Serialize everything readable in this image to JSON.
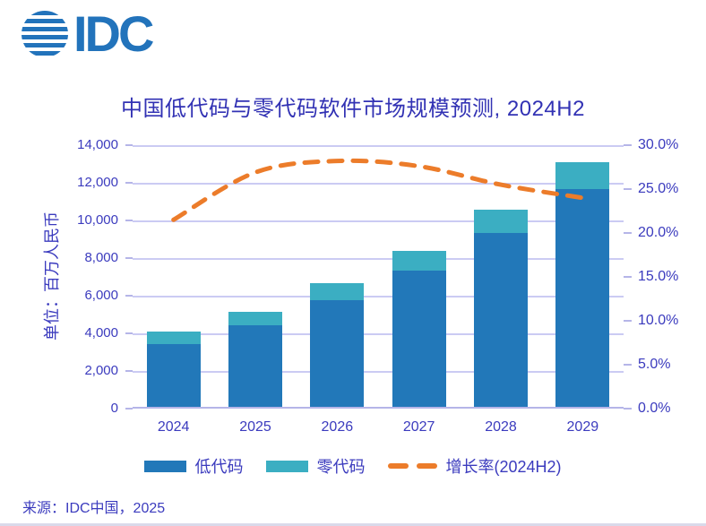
{
  "logo": {
    "text": "IDC",
    "color": "#2273BB"
  },
  "title": "中国低代码与零代码软件市场规模预测, 2024H2",
  "y_axis_title": "单位：百万人民币",
  "source": "来源：IDC中国，2025",
  "colors": {
    "low_code": "#2278B9",
    "zero_code": "#3BAEC2",
    "growth_line": "#EC7C2A",
    "text_blue": "#3B3BBE",
    "title_blue": "#3232B4",
    "gridline": "#CBCBF3",
    "axis_line": "#B5B5E8",
    "logo_blue": "#2273BB"
  },
  "chart_data": {
    "type": "bar",
    "subtype": "stacked-bars-with-line",
    "title": "中国低代码与零代码软件市场规模预测, 2024H2",
    "ylabel_left": "单位：百万人民币",
    "categories": [
      "2024",
      "2025",
      "2026",
      "2027",
      "2028",
      "2029"
    ],
    "series": [
      {
        "name": "低代码",
        "type": "bar",
        "axis": "left",
        "values": [
          3350,
          4350,
          5650,
          7250,
          9250,
          11550
        ]
      },
      {
        "name": "零代码",
        "type": "bar",
        "axis": "left",
        "values": [
          650,
          700,
          900,
          1050,
          1250,
          1450
        ]
      },
      {
        "name": "增长率(2024H2)",
        "type": "line",
        "axis": "right",
        "style": "dashed",
        "values": [
          21.5,
          26.9,
          28.2,
          27.6,
          25.5,
          24.0
        ]
      }
    ],
    "left_axis": {
      "min": 0,
      "max": 14000,
      "step": 2000,
      "tick_labels": [
        "0",
        "2,000",
        "4,000",
        "6,000",
        "8,000",
        "10,000",
        "12,000",
        "14,000"
      ]
    },
    "right_axis": {
      "min": 0,
      "max": 30,
      "step": 5,
      "tick_labels": [
        "0.0%",
        "5.0%",
        "10.0%",
        "15.0%",
        "20.0%",
        "25.0%",
        "30.0%"
      ]
    },
    "grid": true,
    "legend_position": "bottom"
  },
  "legend": [
    {
      "label": "低代码",
      "swatch": "bar",
      "color": "#2278B9"
    },
    {
      "label": "零代码",
      "swatch": "bar",
      "color": "#3BAEC2"
    },
    {
      "label": "增长率(2024H2)",
      "swatch": "dash",
      "color": "#EC7C2A"
    }
  ]
}
